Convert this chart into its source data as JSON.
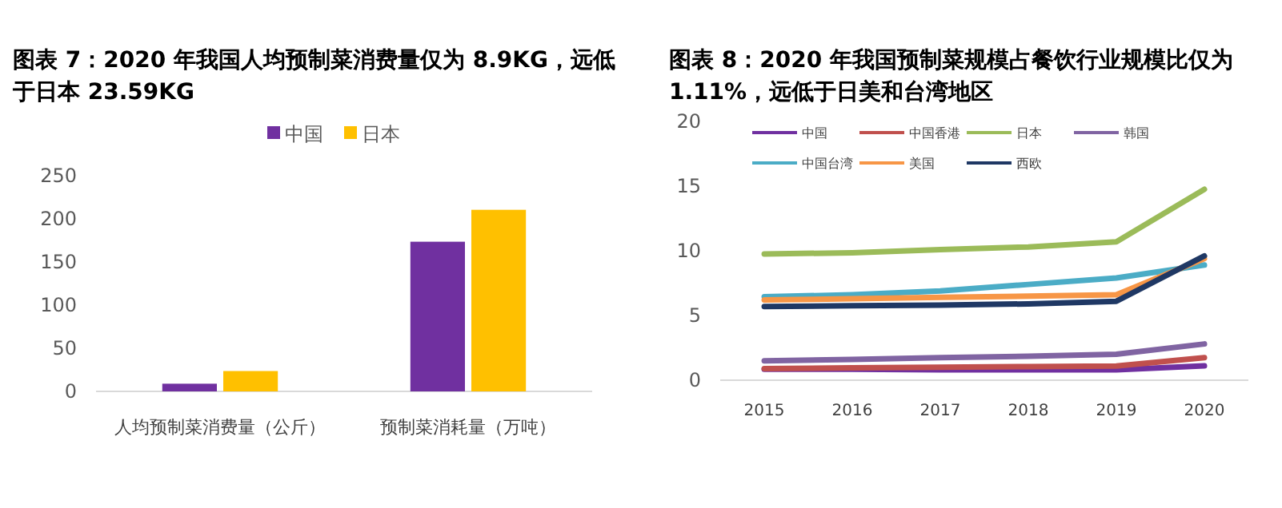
{
  "chart_data": [
    {
      "type": "bar",
      "title": "图表 7：2020 年我国人均预制菜消费量仅为 8.9KG，远低于日本 23.59KG",
      "categories": [
        "人均预制菜消费量（公斤）",
        "预制菜消耗量（万吨）"
      ],
      "series": [
        {
          "name": "中国",
          "color": "#7030a0",
          "values": [
            8.9,
            173.5
          ]
        },
        {
          "name": "日本",
          "color": "#ffc000",
          "values": [
            23.59,
            210.5
          ]
        }
      ],
      "ylim": [
        0,
        250
      ],
      "yticks": [
        0,
        50,
        100,
        150,
        200,
        250
      ],
      "legend": "top"
    },
    {
      "type": "line",
      "title": "图表 8：2020 年我国预制菜规模占餐饮行业规模比仅为 1.11%，远低于日美和台湾地区",
      "categories": [
        "2015",
        "2016",
        "2017",
        "2018",
        "2019",
        "2020"
      ],
      "series": [
        {
          "name": "中国",
          "color": "#7030a0",
          "values": [
            0.85,
            0.85,
            0.8,
            0.8,
            0.8,
            1.11
          ]
        },
        {
          "name": "中国香港",
          "color": "#c0504d",
          "values": [
            0.9,
            0.95,
            1.0,
            1.05,
            1.1,
            1.75
          ]
        },
        {
          "name": "日本",
          "color": "#9bbb59",
          "values": [
            9.75,
            9.85,
            10.1,
            10.3,
            10.7,
            14.75
          ]
        },
        {
          "name": "韩国",
          "color": "#8064a2",
          "values": [
            1.5,
            1.6,
            1.75,
            1.85,
            2.0,
            2.8
          ]
        },
        {
          "name": "中国台湾",
          "color": "#4bacc6",
          "values": [
            6.45,
            6.6,
            6.9,
            7.4,
            7.9,
            8.9
          ]
        },
        {
          "name": "美国",
          "color": "#f79646",
          "values": [
            6.2,
            6.3,
            6.4,
            6.5,
            6.6,
            9.4
          ]
        },
        {
          "name": "西欧",
          "color": "#1f3864",
          "values": [
            5.7,
            5.75,
            5.8,
            5.9,
            6.1,
            9.6
          ]
        }
      ],
      "ylim": [
        0,
        20
      ],
      "yticks": [
        0,
        5,
        10,
        15,
        20
      ],
      "legend": "top"
    }
  ]
}
